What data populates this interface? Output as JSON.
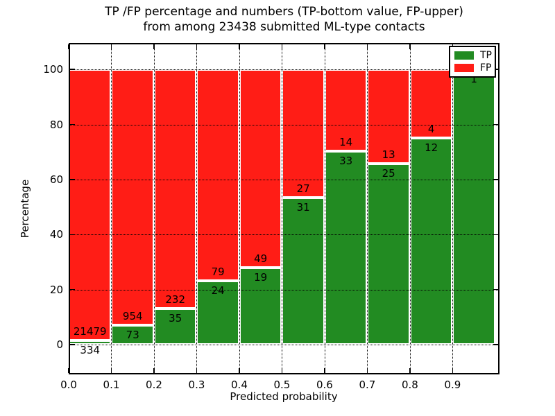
{
  "figure": {
    "title_line1": "TP /FP percentage and numbers (TP-bottom value, FP-upper)",
    "title_line2": "from among 23438 submitted ML-type contacts",
    "total_contacts": "23438"
  },
  "chart_data": {
    "type": "bar",
    "stacked": true,
    "normalized_to_percent": true,
    "title": "TP /FP percentage and numbers (TP-bottom value, FP-upper) from among 23438 submitted ML-type contacts",
    "xlabel": "Predicted probability",
    "ylabel": "Percentage",
    "bin_edges": [
      0.0,
      0.1,
      0.2,
      0.3,
      0.4,
      0.5,
      0.6,
      0.7,
      0.8,
      0.9,
      1.0
    ],
    "categories": [
      "0.0-0.1",
      "0.1-0.2",
      "0.2-0.3",
      "0.3-0.4",
      "0.4-0.5",
      "0.5-0.6",
      "0.6-0.7",
      "0.7-0.8",
      "0.8-0.9",
      "0.9-1.0"
    ],
    "series": [
      {
        "name": "TP",
        "color": "#228b22",
        "counts": [
          334,
          73,
          35,
          24,
          19,
          31,
          33,
          25,
          12,
          1
        ],
        "pct": [
          1.53,
          7.11,
          13.11,
          23.3,
          27.94,
          53.45,
          70.21,
          65.79,
          75.0,
          100.0
        ]
      },
      {
        "name": "FP",
        "color": "#ff1d16",
        "counts": [
          21479,
          954,
          232,
          79,
          49,
          27,
          14,
          13,
          4,
          0
        ],
        "pct": [
          98.47,
          92.89,
          86.89,
          76.7,
          72.06,
          46.55,
          29.79,
          34.21,
          25.0,
          0.0
        ]
      }
    ],
    "xticks": [
      {
        "v": 0.0,
        "label": "0.0"
      },
      {
        "v": 0.1,
        "label": "0.1"
      },
      {
        "v": 0.2,
        "label": "0.2"
      },
      {
        "v": 0.3,
        "label": "0.3"
      },
      {
        "v": 0.4,
        "label": "0.4"
      },
      {
        "v": 0.5,
        "label": "0.5"
      },
      {
        "v": 0.6,
        "label": "0.6"
      },
      {
        "v": 0.7,
        "label": "0.7"
      },
      {
        "v": 0.8,
        "label": "0.8"
      },
      {
        "v": 0.9,
        "label": "0.9"
      }
    ],
    "yticks": [
      {
        "v": 0,
        "label": "0"
      },
      {
        "v": 20,
        "label": "20"
      },
      {
        "v": 40,
        "label": "40"
      },
      {
        "v": 60,
        "label": "60"
      },
      {
        "v": 80,
        "label": "80"
      },
      {
        "v": 100,
        "label": "100"
      }
    ],
    "xlim": [
      0,
      1.01
    ],
    "ylim": [
      -10.8,
      109.6
    ],
    "grid": "dotted black, x and y, drawn over bars",
    "bar_edge_color": "#ffffff",
    "legend": {
      "position": "upper right",
      "entries": [
        {
          "label": "TP",
          "color": "#228b22"
        },
        {
          "label": "FP",
          "color": "#ff1d16"
        }
      ]
    }
  }
}
